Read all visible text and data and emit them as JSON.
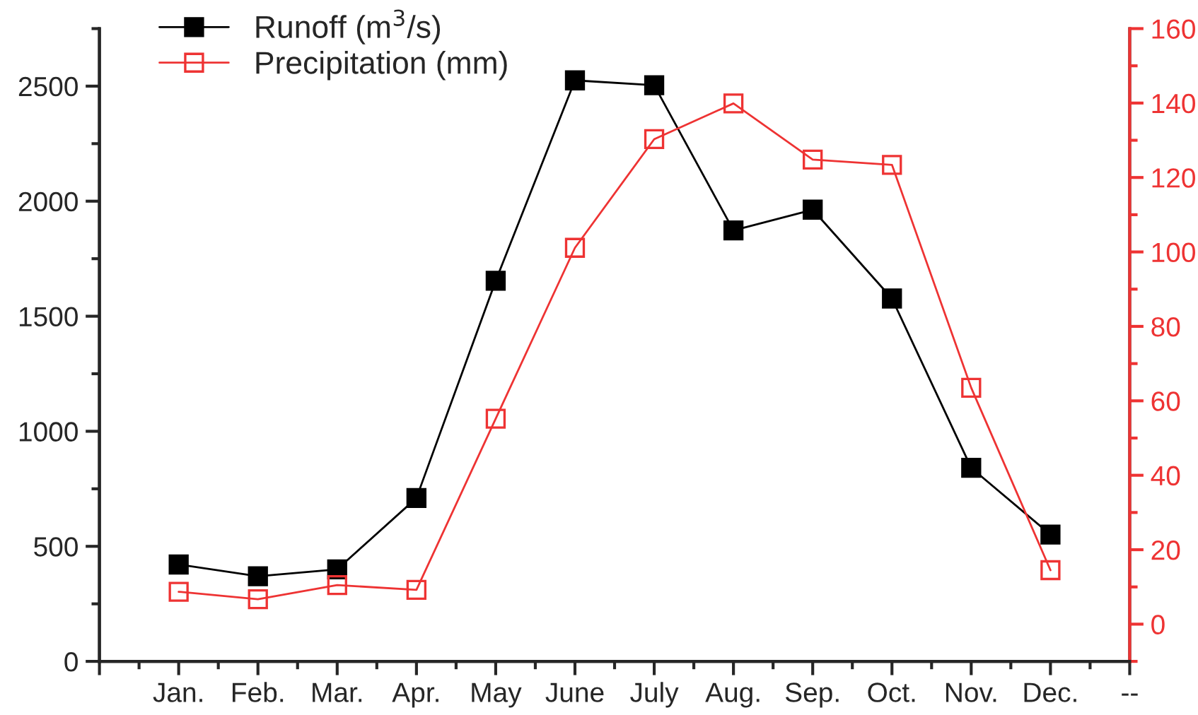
{
  "chart_data": {
    "type": "line",
    "categories": [
      null,
      "Jan.",
      "Feb.",
      "Mar.",
      "Apr.",
      "May",
      "June",
      "July",
      "Aug.",
      "Sep.",
      "Oct.",
      "Nov.",
      "Dec.",
      "--"
    ],
    "series": [
      {
        "name": "Runoff (m$^{3}$/s)",
        "color": "#000000",
        "values": [
          null,
          421,
          370,
          400,
          710,
          1654,
          2525,
          2504,
          1873,
          1963,
          1577,
          841,
          551,
          null
        ]
      },
      {
        "name": "Precipitation (mm)",
        "color": "#ee3333",
        "axis": "y2",
        "values": [
          null,
          8.7,
          6.7,
          10.5,
          9.2,
          55.2,
          101.1,
          130.3,
          139.9,
          124.8,
          123.4,
          63.5,
          14.5,
          null
        ]
      }
    ],
    "ylim": [
      0,
      2750
    ],
    "yticks": [
      0,
      500,
      1000,
      1500,
      2000,
      2500
    ],
    "y2lim": [
      -10,
      160
    ],
    "y2ticks": [
      0,
      20,
      40,
      60,
      80,
      100,
      120,
      140,
      160
    ],
    "marker": "square",
    "line_style": "solid",
    "legend": "top left",
    "grid": false
  }
}
